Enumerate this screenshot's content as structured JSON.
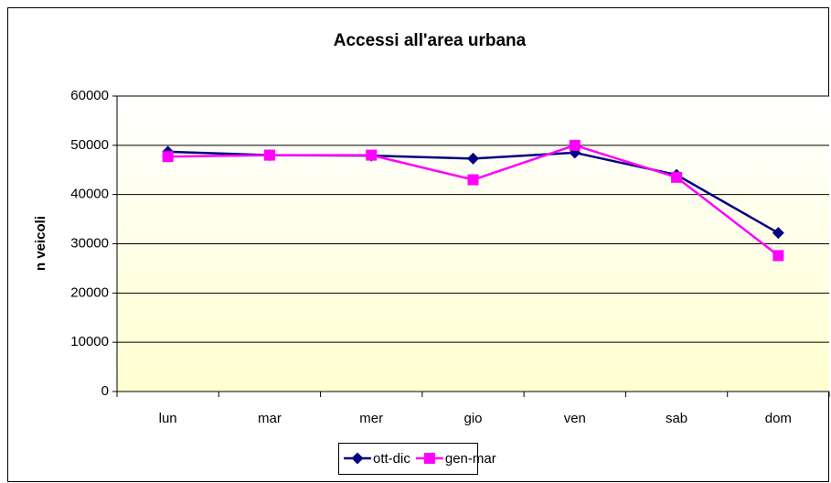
{
  "chart_data": {
    "type": "line",
    "title": "Accessi all'area urbana",
    "ylabel": "n veicoli",
    "categories": [
      "lun",
      "mar",
      "mer",
      "gio",
      "ven",
      "sab",
      "dom"
    ],
    "series": [
      {
        "name": "ott-dic",
        "color": "#000080",
        "marker": "diamond",
        "values": [
          48700,
          48000,
          47900,
          47300,
          48500,
          44000,
          32200
        ]
      },
      {
        "name": "gen-mar",
        "color": "#ff00ff",
        "marker": "square",
        "values": [
          47700,
          48000,
          48000,
          43000,
          50000,
          43500,
          27600
        ]
      }
    ],
    "ylim": [
      0,
      60000
    ],
    "yticks": [
      0,
      10000,
      20000,
      30000,
      40000,
      50000,
      60000
    ],
    "grid": true,
    "legend": "bottom"
  }
}
